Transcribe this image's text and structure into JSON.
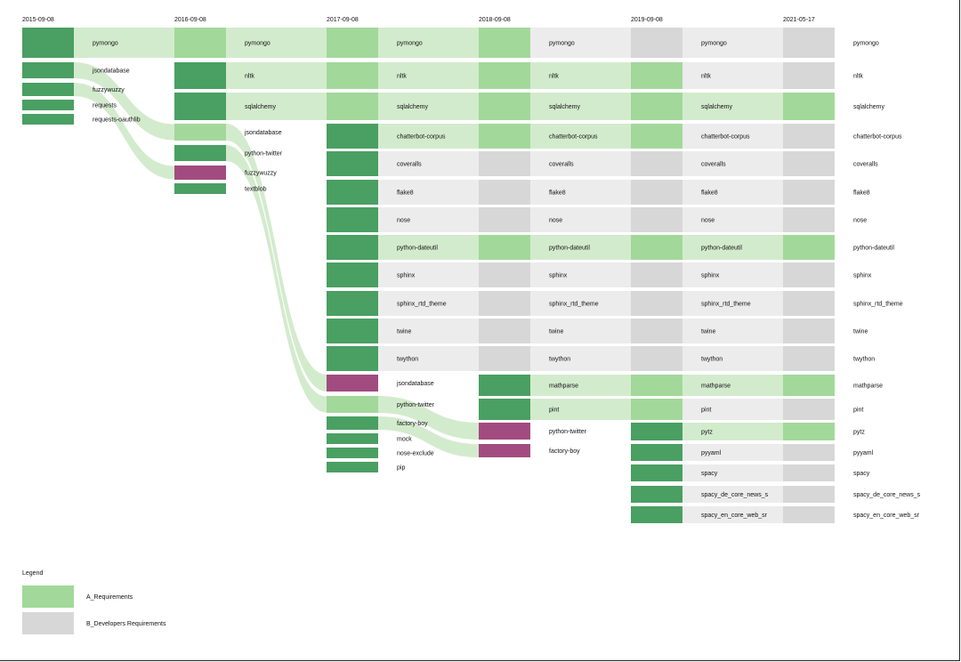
{
  "colors": {
    "dark_green": "#4a9f62",
    "light_green": "#a2d89a",
    "pale_green": "#d3ebcd",
    "gray": "#d7d7d7",
    "pale_gray": "#ececec",
    "purple": "#a24b80"
  },
  "snapshots": [
    {
      "date": "2015-09-08",
      "rows": [
        {
          "name": "pymongo",
          "status": "dark"
        },
        {
          "name": "jsondatabase",
          "status": "dark"
        },
        {
          "name": "fuzzywuzzy",
          "status": "dark"
        },
        {
          "name": "requests",
          "status": "dark"
        },
        {
          "name": "requests-oauthlib",
          "status": "dark"
        }
      ]
    },
    {
      "date": "2016-09-08",
      "rows": [
        {
          "name": "pymongo",
          "status": "light"
        },
        {
          "name": "nltk",
          "status": "dark"
        },
        {
          "name": "sqlalchemy",
          "status": "dark"
        },
        {
          "name": "jsondatabase",
          "status": "light"
        },
        {
          "name": "python-twitter",
          "status": "dark"
        },
        {
          "name": "fuzzywuzzy",
          "status": "purple"
        },
        {
          "name": "textblob",
          "status": "dark"
        }
      ]
    },
    {
      "date": "2017-09-08",
      "rows": [
        {
          "name": "pymongo",
          "status": "light"
        },
        {
          "name": "nltk",
          "status": "light"
        },
        {
          "name": "sqlalchemy",
          "status": "light"
        },
        {
          "name": "chatterbot-corpus",
          "status": "dark"
        },
        {
          "name": "coveralls",
          "status": "dark"
        },
        {
          "name": "flake8",
          "status": "dark"
        },
        {
          "name": "nose",
          "status": "dark"
        },
        {
          "name": "python-dateutil",
          "status": "dark"
        },
        {
          "name": "sphinx",
          "status": "dark"
        },
        {
          "name": "sphinx_rtd_theme",
          "status": "dark"
        },
        {
          "name": "twine",
          "status": "dark"
        },
        {
          "name": "twython",
          "status": "dark"
        },
        {
          "name": "jsondatabase",
          "status": "purple"
        },
        {
          "name": "python-twitter",
          "status": "light"
        },
        {
          "name": "factory-boy",
          "status": "dark"
        },
        {
          "name": "mock",
          "status": "dark"
        },
        {
          "name": "nose-exclude",
          "status": "dark"
        },
        {
          "name": "pip",
          "status": "dark"
        }
      ]
    },
    {
      "date": "2018-09-08",
      "rows": [
        {
          "name": "pymongo",
          "status": "light"
        },
        {
          "name": "nltk",
          "status": "light"
        },
        {
          "name": "sqlalchemy",
          "status": "light"
        },
        {
          "name": "chatterbot-corpus",
          "status": "light"
        },
        {
          "name": "coveralls",
          "status": "gray"
        },
        {
          "name": "flake8",
          "status": "gray"
        },
        {
          "name": "nose",
          "status": "gray"
        },
        {
          "name": "python-dateutil",
          "status": "light"
        },
        {
          "name": "sphinx",
          "status": "gray"
        },
        {
          "name": "sphinx_rtd_theme",
          "status": "gray"
        },
        {
          "name": "twine",
          "status": "gray"
        },
        {
          "name": "twython",
          "status": "gray"
        },
        {
          "name": "mathparse",
          "status": "dark"
        },
        {
          "name": "pint",
          "status": "dark"
        },
        {
          "name": "python-twitter",
          "status": "purple"
        },
        {
          "name": "factory-boy",
          "status": "purple"
        }
      ]
    },
    {
      "date": "2019-09-08",
      "rows": [
        {
          "name": "pymongo",
          "status": "gray"
        },
        {
          "name": "nltk",
          "status": "light"
        },
        {
          "name": "sqlalchemy",
          "status": "light"
        },
        {
          "name": "chatterbot-corpus",
          "status": "light"
        },
        {
          "name": "coveralls",
          "status": "gray"
        },
        {
          "name": "flake8",
          "status": "gray"
        },
        {
          "name": "nose",
          "status": "gray"
        },
        {
          "name": "python-dateutil",
          "status": "light"
        },
        {
          "name": "sphinx",
          "status": "gray"
        },
        {
          "name": "sphinx_rtd_theme",
          "status": "gray"
        },
        {
          "name": "twine",
          "status": "gray"
        },
        {
          "name": "twython",
          "status": "gray"
        },
        {
          "name": "mathparse",
          "status": "light"
        },
        {
          "name": "pint",
          "status": "light"
        },
        {
          "name": "pytz",
          "status": "dark"
        },
        {
          "name": "pyyaml",
          "status": "dark"
        },
        {
          "name": "spacy",
          "status": "dark"
        },
        {
          "name": "spacy_de_core_news_s",
          "status": "dark"
        },
        {
          "name": "spacy_en_core_web_sr",
          "status": "dark"
        }
      ]
    },
    {
      "date": "2021-05-17",
      "rows": [
        {
          "name": "pymongo",
          "status": "gray"
        },
        {
          "name": "nltk",
          "status": "gray"
        },
        {
          "name": "sqlalchemy",
          "status": "light"
        },
        {
          "name": "chatterbot-corpus",
          "status": "gray"
        },
        {
          "name": "coveralls",
          "status": "gray"
        },
        {
          "name": "flake8",
          "status": "gray"
        },
        {
          "name": "nose",
          "status": "gray"
        },
        {
          "name": "python-dateutil",
          "status": "light"
        },
        {
          "name": "sphinx",
          "status": "gray"
        },
        {
          "name": "sphinx_rtd_theme",
          "status": "gray"
        },
        {
          "name": "twine",
          "status": "gray"
        },
        {
          "name": "twython",
          "status": "gray"
        },
        {
          "name": "mathparse",
          "status": "light"
        },
        {
          "name": "pint",
          "status": "gray"
        },
        {
          "name": "pytz",
          "status": "light"
        },
        {
          "name": "pyyaml",
          "status": "gray"
        },
        {
          "name": "spacy",
          "status": "gray"
        },
        {
          "name": "spacy_de_core_news_s",
          "status": "gray"
        },
        {
          "name": "spacy_en_core_web_sr",
          "status": "gray"
        }
      ]
    }
  ],
  "legend": {
    "title": "Legend",
    "items": [
      {
        "label": "A_Requirements",
        "status": "light"
      },
      {
        "label": "B_Developers Requirements",
        "status": "gray"
      }
    ]
  }
}
